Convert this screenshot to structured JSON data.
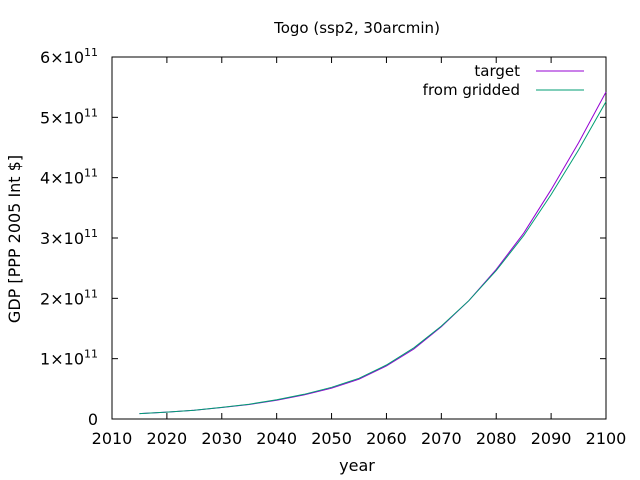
{
  "chart_data": {
    "type": "line",
    "title": "Togo (ssp2, 30arcmin)",
    "xlabel": "year",
    "ylabel": "GDP [PPP 2005 Int $]",
    "xlim": [
      2010,
      2100
    ],
    "ylim": [
      0,
      600000000000
    ],
    "x_ticks": [
      "2010",
      "2020",
      "2030",
      "2040",
      "2050",
      "2060",
      "2070",
      "2080",
      "2090",
      "2100"
    ],
    "y_ticks": [
      {
        "value": 0,
        "mantissa": "0",
        "exponent": ""
      },
      {
        "value": 100000000000,
        "mantissa": "1×10",
        "exponent": "11"
      },
      {
        "value": 200000000000,
        "mantissa": "2×10",
        "exponent": "11"
      },
      {
        "value": 300000000000,
        "mantissa": "3×10",
        "exponent": "11"
      },
      {
        "value": 400000000000,
        "mantissa": "4×10",
        "exponent": "11"
      },
      {
        "value": 500000000000,
        "mantissa": "5×10",
        "exponent": "11"
      },
      {
        "value": 600000000000,
        "mantissa": "6×10",
        "exponent": "11"
      }
    ],
    "grid": false,
    "legend_position": "top-right",
    "x": [
      2015,
      2020,
      2025,
      2030,
      2035,
      2040,
      2045,
      2050,
      2055,
      2060,
      2065,
      2070,
      2075,
      2080,
      2085,
      2090,
      2095,
      2100
    ],
    "series": [
      {
        "name": "target",
        "color": "#9400d3",
        "values": [
          9000000000,
          11500000000,
          14500000000,
          19000000000,
          24000000000,
          31000000000,
          40000000000,
          51000000000,
          66000000000,
          88000000000,
          116000000000,
          153000000000,
          196000000000,
          248000000000,
          308000000000,
          380000000000,
          458000000000,
          542000000000
        ]
      },
      {
        "name": "from gridded",
        "color": "#009e73",
        "values": [
          9000000000,
          11500000000,
          14600000000,
          19200000000,
          24500000000,
          31800000000,
          41000000000,
          52500000000,
          67500000000,
          89500000000,
          118000000000,
          154000000000,
          196000000000,
          246000000000,
          304000000000,
          372000000000,
          446000000000,
          526000000000
        ]
      }
    ]
  }
}
